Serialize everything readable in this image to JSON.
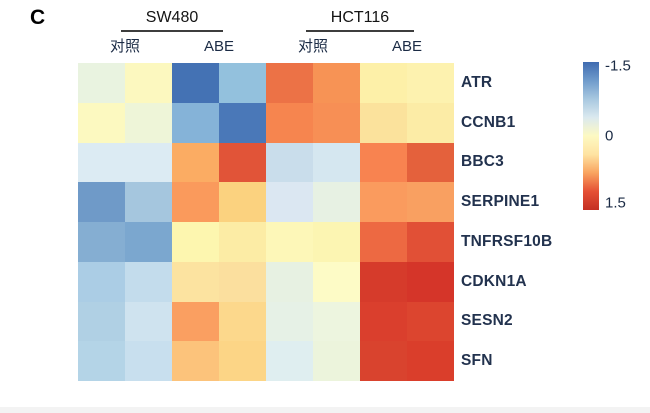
{
  "panel_label": "C",
  "column_groups": [
    {
      "cell_line": "SW480",
      "conditions": [
        {
          "label": "对照"
        },
        {
          "label": "ABE"
        }
      ]
    },
    {
      "cell_line": "HCT116",
      "conditions": [
        {
          "label": "对照"
        },
        {
          "label": "ABE"
        }
      ]
    }
  ],
  "colorbar": {
    "orientation": "vertical",
    "tick_labels": [
      "-1.5",
      "0",
      "1.5"
    ],
    "gradient_stops": [
      "#3f6bb0",
      "#6f9bcb",
      "#a8c8e0",
      "#dbe9ef",
      "#fdf9c2",
      "#fee3a2",
      "#f9a35f",
      "#e55035",
      "#c42f23"
    ]
  },
  "chart_data": {
    "type": "heatmap",
    "rows": [
      "ATR",
      "CCNB1",
      "BBC3",
      "SERPINE1",
      "TNFRSF10B",
      "CDKN1A",
      "SESN2",
      "SFN"
    ],
    "columns": [
      "SW480 对照",
      "SW480 对照",
      "SW480 ABE",
      "SW480 ABE",
      "HCT116 对照",
      "HCT116 对照",
      "HCT116 ABE",
      "HCT116 ABE"
    ],
    "scale": {
      "min": -1.5,
      "mid": 0,
      "max": 1.5,
      "low_color": "#3f6bb0",
      "mid_color": "#fdf9c2",
      "high_color": "#c42f23"
    },
    "legend_position": "right",
    "values": [
      [
        -0.2,
        0.0,
        -1.5,
        -0.8,
        1.1,
        0.9,
        0.2,
        0.15
      ],
      [
        0.0,
        -0.15,
        -0.85,
        -1.3,
        1.0,
        0.9,
        0.35,
        0.2
      ],
      [
        -0.35,
        -0.35,
        0.75,
        1.3,
        -0.5,
        -0.4,
        1.05,
        1.25
      ],
      [
        -1.0,
        -0.6,
        0.95,
        0.5,
        -0.35,
        -0.2,
        0.95,
        0.9
      ],
      [
        -0.75,
        -0.85,
        0.05,
        0.2,
        0.05,
        0.1,
        1.2,
        1.35
      ],
      [
        -0.55,
        -0.4,
        0.3,
        0.35,
        -0.2,
        0.0,
        1.45,
        1.45
      ],
      [
        -0.5,
        -0.4,
        0.9,
        0.45,
        -0.2,
        -0.15,
        1.4,
        1.35
      ],
      [
        -0.5,
        -0.4,
        0.55,
        0.45,
        -0.3,
        -0.2,
        1.4,
        1.4
      ]
    ],
    "cell_colors": [
      [
        "#e9f3e0",
        "#fcf8bf",
        "#4472b4",
        "#93c1dd",
        "#ec7246",
        "#f79355",
        "#fdf0a8",
        "#fdf2af"
      ],
      [
        "#fcf9c0",
        "#eef5d8",
        "#85b3d8",
        "#4a78b8",
        "#f6854f",
        "#f78f55",
        "#fbe29c",
        "#fceca6"
      ],
      [
        "#dcebf3",
        "#dcebf3",
        "#fbac63",
        "#e15438",
        "#c9ddeb",
        "#d5e7f0",
        "#f88350",
        "#e4613c"
      ],
      [
        "#6f9ac8",
        "#a5c6de",
        "#fa9a5c",
        "#fbd27f",
        "#dbe7f2",
        "#e7f1e3",
        "#fa9b5e",
        "#f9a061"
      ],
      [
        "#85aed2",
        "#7ba7cf",
        "#fdf6af",
        "#fceca5",
        "#fdf7b8",
        "#fcf5b2",
        "#ed6942",
        "#e15036"
      ],
      [
        "#abcde5",
        "#c3dcec",
        "#fce3a0",
        "#fbdf9e",
        "#e7f1e2",
        "#fdfbc6",
        "#d63b2b",
        "#d53529"
      ],
      [
        "#b0d0e4",
        "#cfe3ef",
        "#fa9f61",
        "#fcd88c",
        "#e6f1e6",
        "#edf5df",
        "#da3f2d",
        "#dc452f"
      ],
      [
        "#b4d4e7",
        "#c8dfee",
        "#fcc37b",
        "#fcd586",
        "#dfeef0",
        "#ecf4dc",
        "#d9432e",
        "#da3e2b"
      ]
    ]
  }
}
